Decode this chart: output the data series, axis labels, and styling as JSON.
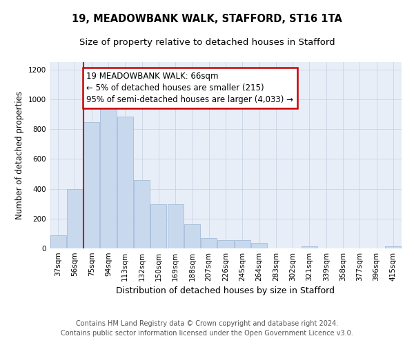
{
  "title1": "19, MEADOWBANK WALK, STAFFORD, ST16 1TA",
  "title2": "Size of property relative to detached houses in Stafford",
  "xlabel": "Distribution of detached houses by size in Stafford",
  "ylabel": "Number of detached properties",
  "categories": [
    "37sqm",
    "56sqm",
    "75sqm",
    "94sqm",
    "113sqm",
    "132sqm",
    "150sqm",
    "169sqm",
    "188sqm",
    "207sqm",
    "226sqm",
    "245sqm",
    "264sqm",
    "283sqm",
    "302sqm",
    "321sqm",
    "339sqm",
    "358sqm",
    "377sqm",
    "396sqm",
    "415sqm"
  ],
  "values": [
    90,
    400,
    845,
    965,
    885,
    460,
    295,
    295,
    160,
    70,
    55,
    55,
    35,
    0,
    0,
    15,
    0,
    0,
    0,
    0,
    15
  ],
  "bar_color": "#c8d9ee",
  "bar_edge_color": "#9ab4d4",
  "redline_x": 1.5,
  "annotation_text": "19 MEADOWBANK WALK: 66sqm\n← 5% of detached houses are smaller (215)\n95% of semi-detached houses are larger (4,033) →",
  "annotation_box_color": "#ffffff",
  "annotation_box_edge": "#cc0000",
  "redline_color": "#cc0000",
  "ylim": [
    0,
    1250
  ],
  "yticks": [
    0,
    200,
    400,
    600,
    800,
    1000,
    1200
  ],
  "grid_color": "#c8d4e4",
  "bg_color": "#e8eef7",
  "footnote": "Contains HM Land Registry data © Crown copyright and database right 2024.\nContains public sector information licensed under the Open Government Licence v3.0.",
  "title1_fontsize": 10.5,
  "title2_fontsize": 9.5,
  "xlabel_fontsize": 9,
  "ylabel_fontsize": 8.5,
  "tick_fontsize": 7.5,
  "annotation_fontsize": 8.5,
  "footnote_fontsize": 7
}
